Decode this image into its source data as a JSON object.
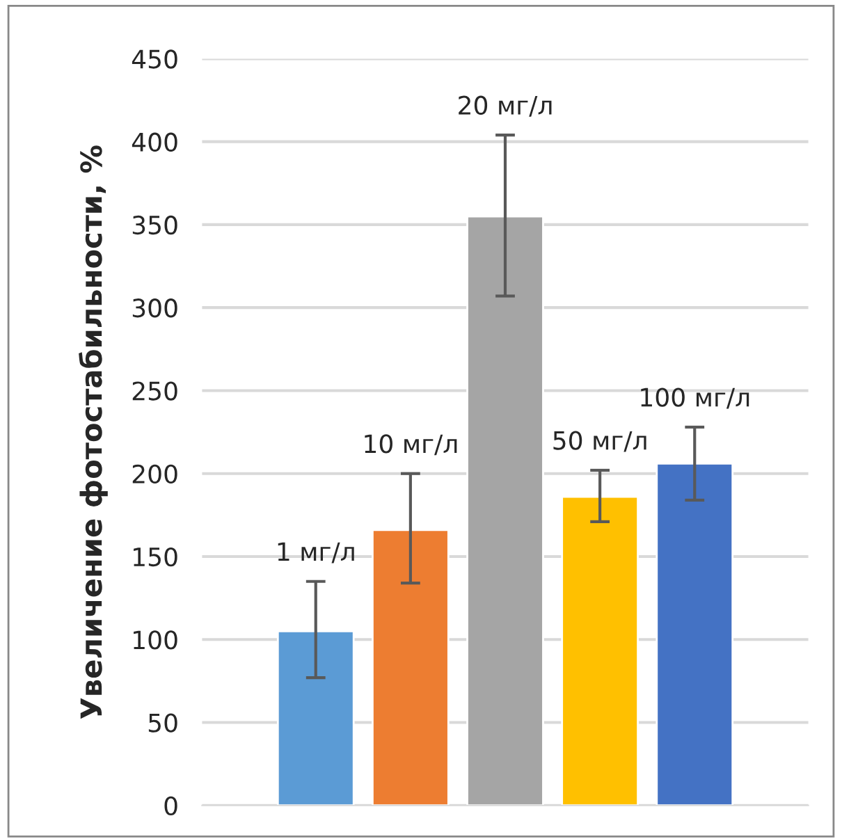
{
  "chart_data": {
    "type": "bar",
    "ylabel": "Увеличение фотостабильности, %",
    "categories": [
      "1 мг/л",
      "10 мг/л",
      "20 мг/л",
      "50 мг/л",
      "100 мг/л"
    ],
    "values": [
      105,
      166,
      355,
      186,
      206
    ],
    "colors": [
      "#5b9bd5",
      "#ed7d31",
      "#a5a5a5",
      "#ffc000",
      "#4472c4"
    ],
    "errors": [
      [
        77,
        135
      ],
      [
        134,
        200
      ],
      [
        307,
        404
      ],
      [
        171,
        202
      ],
      [
        184,
        228
      ]
    ],
    "ylim": [
      0,
      450
    ],
    "yticks": [
      0,
      50,
      100,
      150,
      200,
      250,
      300,
      350,
      400,
      450
    ],
    "grid": "y",
    "tick_labels": "y"
  }
}
